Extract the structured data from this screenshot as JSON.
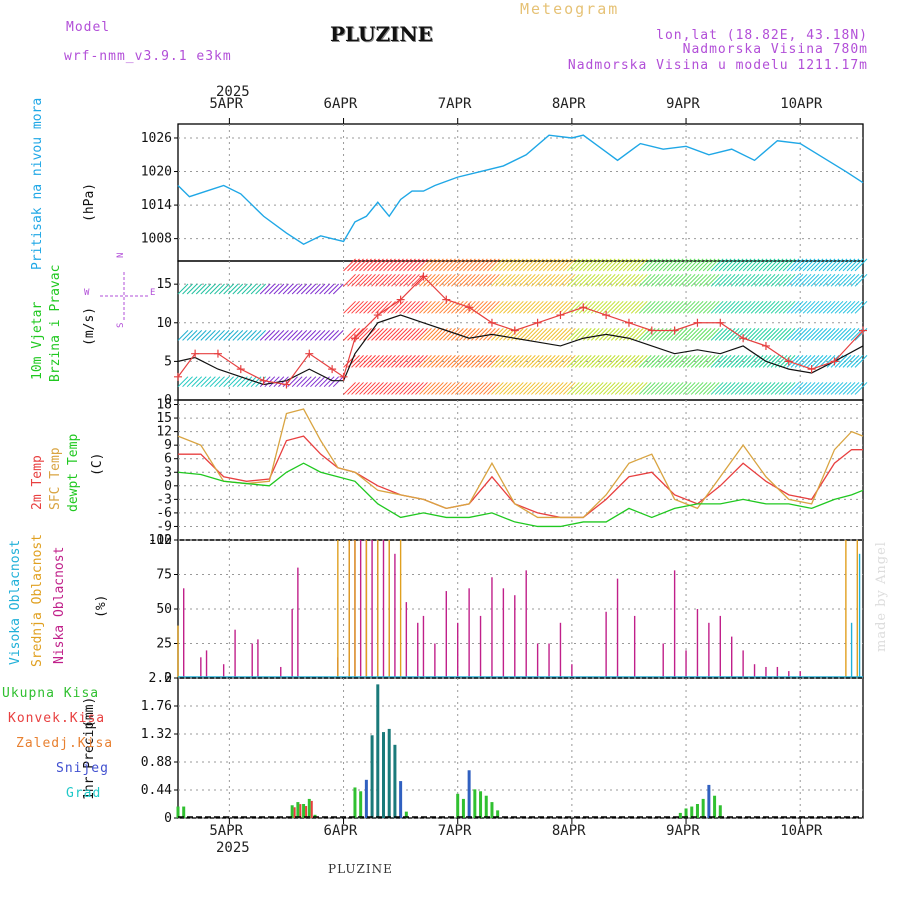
{
  "header": {
    "model_label": "Model",
    "model_name": "wrf-nmm_v3.9.1 e3km",
    "title": "PLUZINE",
    "meteogram": "Meteogram",
    "lonlat": "lon,lat (18.82E, 43.18N)",
    "altitude": "Nadmorska Visina 780m",
    "model_altitude": "Nadmorska Visina u modelu 1211.17m",
    "footer": "PLUZINE",
    "made_by": "made by Angel"
  },
  "dates": {
    "year": "2025",
    "labels": [
      "5APR",
      "6APR",
      "7APR",
      "8APR",
      "9APR",
      "10APR"
    ],
    "x_day": [
      0,
      1,
      2,
      3,
      4,
      5
    ],
    "x_range": [
      -0.45,
      5.55
    ]
  },
  "colors": {
    "pressure": "#1fa7e6",
    "wind_speed": "#111111",
    "gust": "#e64040",
    "t2m": "#e84040",
    "tsfc": "#d9a441",
    "dewpt": "#20c820",
    "cloud_high": "#20b0d8",
    "cloud_mid": "#e0a020",
    "cloud_low": "#c0208a",
    "precip_total": "#30c030",
    "precip_conv": "#e84040",
    "precip_grid": "#e88030",
    "precip_snow": "#4050d0",
    "precip_graupel": "#20c8c8"
  },
  "chart_data": [
    {
      "type": "line",
      "panel": "pressure",
      "ylabel": "Pritisak na nivou mora",
      "yunit": "(hPa)",
      "yticks": [
        "1008",
        "1014",
        "1020",
        "1026"
      ],
      "ytick_values": [
        1008,
        1014,
        1020,
        1026
      ],
      "ylim": [
        1004,
        1028.5
      ],
      "x": [
        -0.45,
        -0.35,
        -0.2,
        -0.05,
        0.1,
        0.3,
        0.5,
        0.65,
        0.8,
        0.9,
        1.0,
        1.1,
        1.2,
        1.3,
        1.4,
        1.5,
        1.6,
        1.7,
        1.8,
        2.0,
        2.2,
        2.4,
        2.6,
        2.8,
        3.0,
        3.1,
        3.2,
        3.3,
        3.4,
        3.6,
        3.8,
        4.0,
        4.2,
        4.4,
        4.6,
        4.8,
        5.0,
        5.2,
        5.4,
        5.55
      ],
      "series": [
        {
          "name": "MSLP",
          "values": [
            1017.5,
            1015.5,
            1016.5,
            1017.5,
            1016,
            1012,
            1009,
            1007,
            1008.5,
            1008,
            1007.5,
            1011,
            1012,
            1014.5,
            1012,
            1015,
            1016.5,
            1016.5,
            1017.5,
            1019,
            1020,
            1021,
            1023,
            1026.5,
            1026,
            1026.5,
            1025,
            1023.5,
            1022,
            1025,
            1024,
            1024.5,
            1023,
            1024,
            1022,
            1025.5,
            1025,
            1022.5,
            1020,
            1018
          ]
        }
      ]
    },
    {
      "type": "line",
      "panel": "wind",
      "ylabel": "10m Vjetar Brzina i Pravac",
      "yunit": "(m/s)",
      "yticks": [
        "0",
        "5",
        "10",
        "15"
      ],
      "ytick_values": [
        0,
        5,
        10,
        15
      ],
      "ylim": [
        0,
        18
      ],
      "compass": [
        "N",
        "W",
        "E",
        "S"
      ],
      "x": [
        -0.45,
        -0.3,
        -0.1,
        0.1,
        0.3,
        0.5,
        0.7,
        0.9,
        1.0,
        1.1,
        1.3,
        1.5,
        1.7,
        1.9,
        2.1,
        2.3,
        2.5,
        2.7,
        2.9,
        3.1,
        3.3,
        3.5,
        3.7,
        3.9,
        4.1,
        4.3,
        4.5,
        4.7,
        4.9,
        5.1,
        5.3,
        5.55
      ],
      "series": [
        {
          "name": "Brzina",
          "values": [
            5,
            5.5,
            4,
            3,
            2,
            2.5,
            4,
            2.5,
            2.5,
            6,
            10,
            11,
            10,
            9,
            8,
            8.5,
            8,
            7.5,
            7,
            8,
            8.5,
            8,
            7,
            6,
            6.5,
            6,
            7,
            5,
            4,
            3.5,
            5,
            7
          ]
        },
        {
          "name": "Udar",
          "values": [
            3,
            6,
            6,
            4,
            2.5,
            2,
            6,
            4,
            3,
            8,
            11,
            13,
            16,
            13,
            12,
            10,
            9,
            10,
            11,
            12,
            11,
            10,
            9,
            9,
            10,
            10,
            8,
            7,
            5,
            4,
            5,
            9
          ]
        }
      ]
    },
    {
      "type": "line",
      "panel": "temperature",
      "ylabel": [
        "2m Temp",
        "SFC Temp",
        "dewpt Temp"
      ],
      "yunit": "(C)",
      "yticks": [
        "-12",
        "-9",
        "-6",
        "-3",
        "0",
        "3",
        "6",
        "9",
        "12",
        "15",
        "18"
      ],
      "ytick_values": [
        -12,
        -9,
        -6,
        -3,
        0,
        3,
        6,
        9,
        12,
        15,
        18
      ],
      "ylim": [
        -12,
        19
      ],
      "x": [
        -0.45,
        -0.25,
        -0.05,
        0.15,
        0.35,
        0.5,
        0.65,
        0.8,
        0.95,
        1.1,
        1.3,
        1.5,
        1.7,
        1.9,
        2.1,
        2.3,
        2.5,
        2.7,
        2.9,
        3.1,
        3.3,
        3.5,
        3.7,
        3.9,
        4.1,
        4.3,
        4.5,
        4.7,
        4.9,
        5.1,
        5.3,
        5.45,
        5.55
      ],
      "series": [
        {
          "name": "2m Temp",
          "values": [
            7,
            7,
            2,
            1,
            1.5,
            10,
            11,
            7,
            4,
            3,
            0,
            -2,
            -3,
            -5,
            -4,
            2,
            -4,
            -6,
            -7,
            -7,
            -3,
            2,
            3,
            -2,
            -4,
            0,
            5,
            1,
            -2,
            -3,
            5,
            8,
            8
          ]
        },
        {
          "name": "SFC Temp",
          "values": [
            11,
            9,
            1,
            0.5,
            1,
            16,
            17,
            10,
            4,
            3,
            -1,
            -2,
            -3,
            -5,
            -4,
            5,
            -4,
            -7,
            -7,
            -7,
            -2,
            5,
            7,
            -3,
            -5,
            2,
            9,
            2,
            -3,
            -4,
            8,
            12,
            11
          ]
        },
        {
          "name": "dewpt Temp",
          "values": [
            3,
            2.5,
            1,
            0.5,
            0,
            3,
            5,
            3,
            2,
            1,
            -4,
            -7,
            -6,
            -7,
            -7,
            -6,
            -8,
            -9,
            -9,
            -8,
            -8,
            -5,
            -7,
            -5,
            -4,
            -4,
            -3,
            -4,
            -4,
            -5,
            -3,
            -2,
            -1
          ]
        }
      ]
    },
    {
      "type": "bar",
      "panel": "cloud",
      "ylabel": [
        "Visoka Oblacnost",
        "Srednja Oblacnost",
        "Niska Oblacnost"
      ],
      "yunit": "(%)",
      "yticks": [
        "0",
        "25",
        "50",
        "75",
        "100"
      ],
      "ytick_values": [
        0,
        25,
        50,
        75,
        100
      ],
      "ylim": [
        0,
        100
      ],
      "series": [
        {
          "name": "Niska",
          "x": [
            -0.4,
            -0.25,
            -0.2,
            -0.05,
            0.05,
            0.2,
            0.25,
            0.45,
            0.55,
            0.6,
            0.95,
            1.05,
            1.1,
            1.15,
            1.2,
            1.25,
            1.3,
            1.35,
            1.4,
            1.45,
            1.55,
            1.65,
            1.7,
            1.8,
            1.9,
            2.0,
            2.1,
            2.2,
            2.3,
            2.4,
            2.5,
            2.6,
            2.7,
            2.8,
            2.9,
            3.0,
            3.3,
            3.4,
            3.55,
            3.8,
            3.9,
            4.0,
            4.1,
            4.2,
            4.3,
            4.4,
            4.5,
            4.6,
            4.7,
            4.8,
            4.9,
            5.0
          ],
          "values": [
            65,
            15,
            20,
            10,
            35,
            25,
            28,
            8,
            50,
            80,
            15,
            100,
            100,
            100,
            100,
            100,
            100,
            100,
            100,
            90,
            55,
            40,
            45,
            25,
            63,
            40,
            65,
            45,
            73,
            65,
            60,
            78,
            25,
            25,
            40,
            10,
            48,
            72,
            45,
            25,
            78,
            20,
            50,
            40,
            45,
            30,
            20,
            10,
            8,
            8,
            5,
            5
          ]
        },
        {
          "name": "Srednja",
          "x": [
            -0.45,
            0.95,
            1.05,
            1.1,
            1.2,
            1.3,
            1.4,
            1.5,
            5.4,
            5.5
          ],
          "values": [
            38,
            100,
            100,
            100,
            100,
            100,
            100,
            100,
            100,
            100
          ]
        },
        {
          "name": "Visoka",
          "x": [
            5.45,
            5.52
          ],
          "values": [
            40,
            90
          ]
        }
      ]
    },
    {
      "type": "bar",
      "panel": "precip",
      "ylabel": "1hr Precip",
      "yunit": "(mm)",
      "legend": [
        "Ukupna Kisa",
        "Konvek.Kisa",
        "Zaledj.Kisa",
        "Snijeg",
        "Grad"
      ],
      "yticks": [
        "0",
        "0.44",
        "0.88",
        "1.32",
        "1.76",
        "2.2"
      ],
      "ytick_values": [
        0,
        0.44,
        0.88,
        1.32,
        1.76,
        2.2
      ],
      "ylim": [
        0,
        2.2
      ],
      "x": [
        -0.45,
        -0.4,
        0.55,
        0.6,
        0.65,
        0.7,
        0.75,
        1.1,
        1.15,
        1.2,
        1.25,
        1.3,
        1.35,
        1.4,
        1.45,
        1.5,
        1.55,
        2.0,
        2.05,
        2.1,
        2.15,
        2.2,
        2.25,
        2.3,
        2.35,
        3.95,
        4.0,
        4.05,
        4.1,
        4.15,
        4.2,
        4.25,
        4.3
      ],
      "series": [
        {
          "name": "Ukupna Kisa",
          "values": [
            0.18,
            0.18,
            0.2,
            0.25,
            0.22,
            0.3,
            0.05,
            0.48,
            0.42,
            0.6,
            1.3,
            2.1,
            1.35,
            1.4,
            1.15,
            0.58,
            0.1,
            0.38,
            0.3,
            0.75,
            0.45,
            0.42,
            0.35,
            0.25,
            0.12,
            0.08,
            0.15,
            0.18,
            0.22,
            0.3,
            0.52,
            0.35,
            0.2
          ]
        }
      ]
    }
  ]
}
